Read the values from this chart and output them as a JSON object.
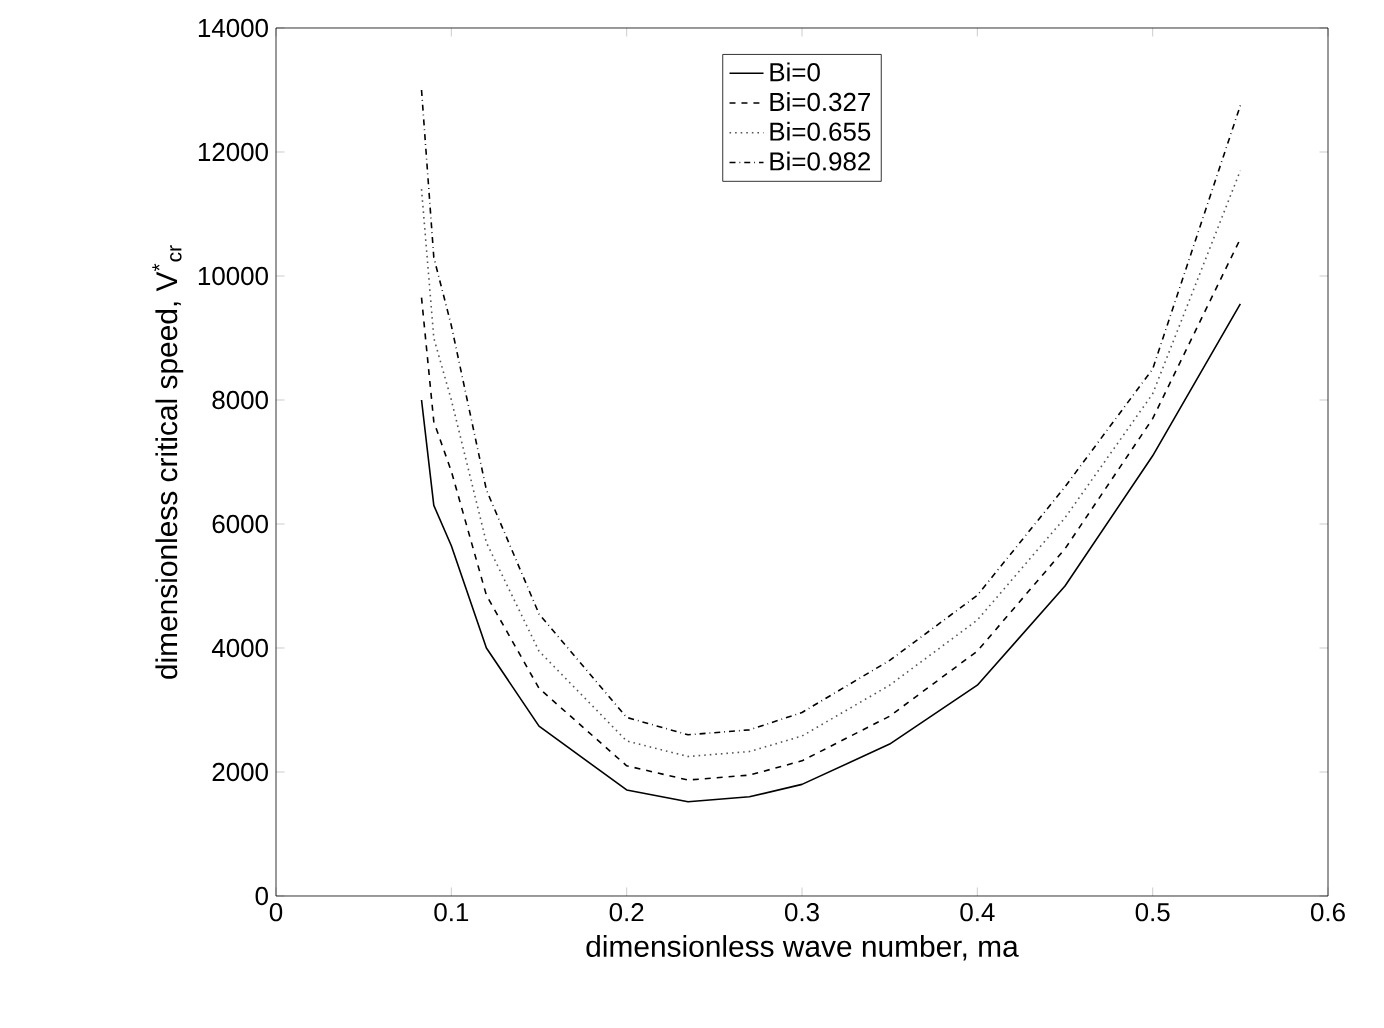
{
  "chart_data": {
    "type": "line",
    "xlabel": "dimensionless wave number, ma",
    "ylabel": "dimensionless critical speed, V$^{*}$$_{cr}$",
    "x": [
      0.083,
      0.09,
      0.1,
      0.12,
      0.15,
      0.2,
      0.235,
      0.27,
      0.3,
      0.35,
      0.4,
      0.45,
      0.5,
      0.55
    ],
    "series": [
      {
        "name": "Bi=0",
        "color": "#000000",
        "line_style": "solid",
        "values": [
          8000,
          6300,
          5650,
          4000,
          2740,
          1710,
          1520,
          1600,
          1800,
          2450,
          3400,
          5000,
          7100,
          9550
        ]
      },
      {
        "name": "Bi=0.327",
        "color": "#000000",
        "line_style": "dashed",
        "values": [
          9650,
          7650,
          6850,
          4850,
          3350,
          2100,
          1870,
          1950,
          2180,
          2900,
          3950,
          5600,
          7700,
          10600
        ]
      },
      {
        "name": "Bi=0.655",
        "color": "#555555",
        "line_style": "dotted",
        "values": [
          11400,
          9000,
          8000,
          5700,
          3950,
          2500,
          2250,
          2330,
          2580,
          3400,
          4450,
          6100,
          8100,
          11700
        ]
      },
      {
        "name": "Bi=0.982",
        "color": "#000000",
        "line_style": "dashdot",
        "values": [
          13000,
          10300,
          9200,
          6550,
          4550,
          2880,
          2600,
          2680,
          2960,
          3800,
          4850,
          6600,
          8500,
          12750
        ]
      }
    ],
    "xlim": [
      0,
      0.6
    ],
    "ylim": [
      0,
      14000
    ],
    "xticks": [
      0,
      0.1,
      0.2,
      0.3,
      0.4,
      0.5,
      0.6
    ],
    "yticks": [
      0,
      2000,
      4000,
      6000,
      8000,
      10000,
      12000,
      14000
    ],
    "grid": false,
    "legend": "top",
    "marker": "none"
  }
}
